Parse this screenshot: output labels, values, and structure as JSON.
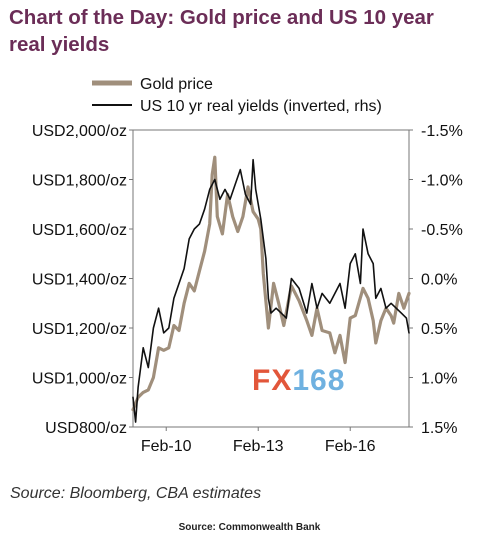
{
  "header": {
    "title_line1": "Chart of the Day: Gold price and US 10 year",
    "title_line2": "real yields"
  },
  "chart_data": {
    "type": "line",
    "xlabel": "",
    "ylabel": "",
    "x_ticks": [
      "Feb-10",
      "Feb-13",
      "Feb-16"
    ],
    "y_left": {
      "ticks": [
        "USD2,000/oz",
        "USD1,800/oz",
        "USD1,600/oz",
        "USD1,400/oz",
        "USD1,200/oz",
        "USD1,000/oz",
        "USD800/oz"
      ],
      "range": [
        800,
        2000
      ]
    },
    "y_right": {
      "ticks": [
        "-1.5%",
        "-1.0%",
        "-0.5%",
        "0.0%",
        "0.5%",
        "1.0%",
        "1.5%"
      ],
      "range": [
        -1.5,
        1.5
      ],
      "inverted": true
    },
    "x_range": [
      "2009-01",
      "2018-01"
    ],
    "legend_position": "top",
    "grid": false,
    "series": [
      {
        "name": "Gold price",
        "axis": "left",
        "color": "#a08f7c",
        "points": [
          [
            "2009-01",
            870
          ],
          [
            "2009-03",
            920
          ],
          [
            "2009-05",
            940
          ],
          [
            "2009-07",
            950
          ],
          [
            "2009-09",
            1000
          ],
          [
            "2009-11",
            1120
          ],
          [
            "2010-01",
            1110
          ],
          [
            "2010-03",
            1120
          ],
          [
            "2010-05",
            1210
          ],
          [
            "2010-07",
            1190
          ],
          [
            "2010-09",
            1300
          ],
          [
            "2010-11",
            1380
          ],
          [
            "2011-01",
            1350
          ],
          [
            "2011-03",
            1430
          ],
          [
            "2011-05",
            1510
          ],
          [
            "2011-07",
            1620
          ],
          [
            "2011-08",
            1820
          ],
          [
            "2011-09",
            1890
          ],
          [
            "2011-10",
            1650
          ],
          [
            "2011-12",
            1580
          ],
          [
            "2012-02",
            1740
          ],
          [
            "2012-04",
            1650
          ],
          [
            "2012-06",
            1590
          ],
          [
            "2012-08",
            1650
          ],
          [
            "2012-10",
            1770
          ],
          [
            "2012-12",
            1670
          ],
          [
            "2013-02",
            1640
          ],
          [
            "2013-03",
            1600
          ],
          [
            "2013-04",
            1420
          ],
          [
            "2013-06",
            1200
          ],
          [
            "2013-08",
            1380
          ],
          [
            "2013-10",
            1300
          ],
          [
            "2013-12",
            1210
          ],
          [
            "2014-03",
            1370
          ],
          [
            "2014-06",
            1310
          ],
          [
            "2014-09",
            1230
          ],
          [
            "2014-11",
            1170
          ],
          [
            "2015-01",
            1280
          ],
          [
            "2015-03",
            1190
          ],
          [
            "2015-06",
            1180
          ],
          [
            "2015-08",
            1100
          ],
          [
            "2015-10",
            1170
          ],
          [
            "2015-12",
            1060
          ],
          [
            "2016-02",
            1240
          ],
          [
            "2016-04",
            1250
          ],
          [
            "2016-07",
            1360
          ],
          [
            "2016-09",
            1320
          ],
          [
            "2016-11",
            1230
          ],
          [
            "2016-12",
            1140
          ],
          [
            "2017-02",
            1230
          ],
          [
            "2017-04",
            1280
          ],
          [
            "2017-06",
            1250
          ],
          [
            "2017-07",
            1220
          ],
          [
            "2017-09",
            1340
          ],
          [
            "2017-11",
            1280
          ],
          [
            "2018-01",
            1340
          ]
        ]
      },
      {
        "name": "US 10 yr real yields (inverted, rhs)",
        "axis": "right",
        "color": "#111111",
        "points": [
          [
            "2009-01",
            1.2
          ],
          [
            "2009-02",
            1.45
          ],
          [
            "2009-03",
            1.1
          ],
          [
            "2009-05",
            0.7
          ],
          [
            "2009-07",
            0.9
          ],
          [
            "2009-09",
            0.5
          ],
          [
            "2009-11",
            0.3
          ],
          [
            "2010-01",
            0.55
          ],
          [
            "2010-03",
            0.5
          ],
          [
            "2010-05",
            0.2
          ],
          [
            "2010-07",
            0.05
          ],
          [
            "2010-09",
            -0.1
          ],
          [
            "2010-11",
            -0.4
          ],
          [
            "2011-01",
            -0.5
          ],
          [
            "2011-03",
            -0.55
          ],
          [
            "2011-05",
            -0.7
          ],
          [
            "2011-07",
            -0.9
          ],
          [
            "2011-09",
            -1.0
          ],
          [
            "2011-11",
            -0.8
          ],
          [
            "2012-01",
            -0.9
          ],
          [
            "2012-03",
            -0.8
          ],
          [
            "2012-05",
            -0.95
          ],
          [
            "2012-07",
            -1.1
          ],
          [
            "2012-09",
            -0.85
          ],
          [
            "2012-11",
            -0.75
          ],
          [
            "2012-12",
            -1.2
          ],
          [
            "2013-01",
            -0.9
          ],
          [
            "2013-03",
            -0.6
          ],
          [
            "2013-05",
            -0.2
          ],
          [
            "2013-06",
            0.2
          ],
          [
            "2013-07",
            0.35
          ],
          [
            "2013-09",
            0.3
          ],
          [
            "2013-11",
            0.35
          ],
          [
            "2014-01",
            0.4
          ],
          [
            "2014-03",
            0.0
          ],
          [
            "2014-06",
            0.1
          ],
          [
            "2014-09",
            0.35
          ],
          [
            "2014-11",
            0.05
          ],
          [
            "2015-01",
            0.3
          ],
          [
            "2015-03",
            0.15
          ],
          [
            "2015-06",
            0.25
          ],
          [
            "2015-08",
            0.15
          ],
          [
            "2015-10",
            0.05
          ],
          [
            "2015-12",
            0.3
          ],
          [
            "2016-02",
            -0.15
          ],
          [
            "2016-04",
            -0.25
          ],
          [
            "2016-06",
            0.05
          ],
          [
            "2016-07",
            -0.5
          ],
          [
            "2016-09",
            -0.25
          ],
          [
            "2016-11",
            -0.15
          ],
          [
            "2016-12",
            0.2
          ],
          [
            "2017-02",
            0.1
          ],
          [
            "2017-04",
            0.3
          ],
          [
            "2017-06",
            0.25
          ],
          [
            "2017-08",
            0.3
          ],
          [
            "2017-10",
            0.35
          ],
          [
            "2017-12",
            0.4
          ],
          [
            "2018-01",
            0.55
          ]
        ]
      }
    ]
  },
  "source_note": "Source: Bloomberg, CBA estimates",
  "footer": "Source: Commonwealth Bank",
  "watermark": {
    "part1": "FX",
    "part2": "168"
  }
}
